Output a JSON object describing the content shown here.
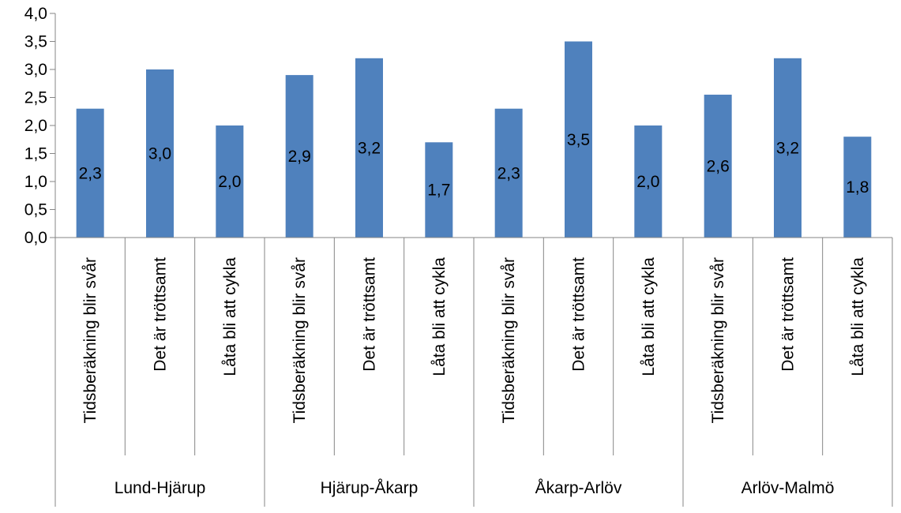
{
  "colors": {
    "bar": "#4f81bd",
    "axis": "#868686",
    "background": "#ffffff"
  },
  "chart_data": {
    "type": "bar",
    "title": "",
    "xlabel": "",
    "ylabel": "",
    "ylim": [
      0,
      4
    ],
    "y_ticks": [
      "0,0",
      "0,5",
      "1,0",
      "1,5",
      "2,0",
      "2,5",
      "3,0",
      "3,5",
      "4,0"
    ],
    "grid": false,
    "legend": "none",
    "groups": [
      {
        "name": "Lund-Hjärup",
        "categories": [
          "Tidsberäkning blir svår",
          "Det är tröttsamt",
          "Låta bli att cykla"
        ],
        "values": [
          2.3,
          3.0,
          2.0
        ],
        "labels": [
          "2,3",
          "3,0",
          "2,0"
        ]
      },
      {
        "name": "Hjärup-Åkarp",
        "categories": [
          "Tidsberäkning blir svår",
          "Det är tröttsamt",
          "Låta bli att cykla"
        ],
        "values": [
          2.9,
          3.2,
          1.7
        ],
        "labels": [
          "2,9",
          "3,2",
          "1,7"
        ]
      },
      {
        "name": "Åkarp-Arlöv",
        "categories": [
          "Tidsberäkning blir svår",
          "Det är tröttsamt",
          "Låta bli att cykla"
        ],
        "values": [
          2.3,
          3.5,
          2.0
        ],
        "labels": [
          "2,3",
          "3,5",
          "2,0"
        ]
      },
      {
        "name": "Arlöv-Malmö",
        "categories": [
          "Tidsberäkning blir svår",
          "Det är tröttsamt",
          "Låta bli att cykla"
        ],
        "values": [
          2.55,
          3.2,
          1.8
        ],
        "labels": [
          "2,6",
          "3,2",
          "1,8"
        ]
      }
    ]
  }
}
